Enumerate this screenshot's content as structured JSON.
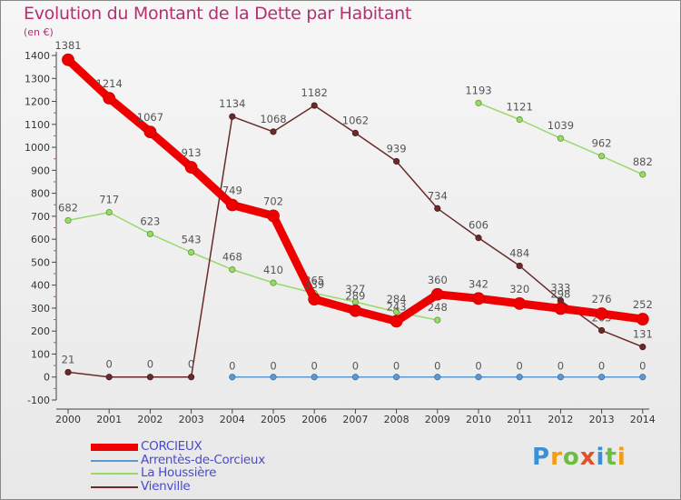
{
  "chart_data": {
    "type": "line",
    "title": "Evolution du Montant de la Dette par Habitant",
    "ylabel": "(en €)",
    "ylim": [
      -100,
      1400
    ],
    "yticks": [
      -100,
      0,
      100,
      200,
      300,
      400,
      500,
      600,
      700,
      800,
      900,
      1000,
      1100,
      1200,
      1300,
      1400
    ],
    "x": [
      "2000",
      "2001",
      "2002",
      "2003",
      "2004",
      "2005",
      "2006",
      "2007",
      "2008",
      "2009",
      "2010",
      "2011",
      "2012",
      "2013",
      "2014"
    ],
    "grid": false,
    "legend_position": "bottom-left",
    "series": [
      {
        "name": "CORCIEUX",
        "color": "#ee0000",
        "values": [
          1381,
          1214,
          1067,
          913,
          749,
          702,
          339,
          289,
          243,
          360,
          342,
          320,
          298,
          276,
          252
        ]
      },
      {
        "name": "Arrentès-de-Corcieux",
        "color": "#5a9ad2",
        "values": [
          null,
          null,
          null,
          null,
          0,
          0,
          0,
          0,
          0,
          0,
          0,
          0,
          0,
          0,
          0
        ]
      },
      {
        "name": "La Houssière",
        "color": "#9ad86a",
        "values": [
          682,
          717,
          623,
          543,
          468,
          410,
          365,
          327,
          284,
          248,
          1193,
          1121,
          1039,
          962,
          882
        ]
      },
      {
        "name": "Vienville",
        "color": "#6a2a2a",
        "values": [
          21,
          0,
          0,
          0,
          1134,
          1068,
          1182,
          1062,
          939,
          734,
          606,
          484,
          333,
          203,
          131
        ]
      }
    ],
    "series_break": [
      {
        "series": 2,
        "after_index": 9
      }
    ]
  },
  "logo": {
    "text": "Proxiti"
  }
}
